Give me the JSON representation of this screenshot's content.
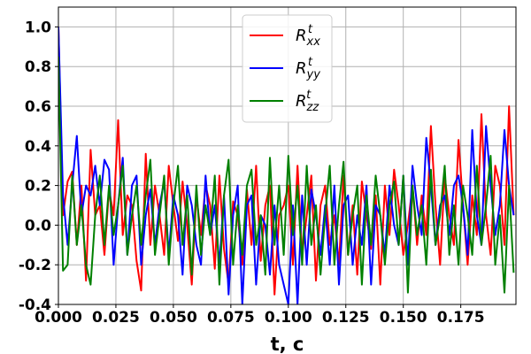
{
  "chart_data": {
    "type": "line",
    "xlabel": "t, c",
    "ylabel": "",
    "title": "",
    "xlim": [
      0,
      0.199
    ],
    "ylim": [
      -0.4,
      1.1
    ],
    "grid": true,
    "legend_position": "top-center",
    "x_ticks": [
      "0.000",
      "0.025",
      "0.050",
      "0.075",
      "0.100",
      "0.125",
      "0.150",
      "0.175"
    ],
    "y_ticks": [
      "-0.4",
      "-0.2",
      "0.0",
      "0.2",
      "0.4",
      "0.6",
      "0.8",
      "1.0"
    ],
    "x_tick_values": [
      0,
      0.025,
      0.05,
      0.075,
      0.1,
      0.125,
      0.15,
      0.175
    ],
    "y_tick_values": [
      -0.4,
      -0.2,
      0,
      0.2,
      0.4,
      0.6,
      0.8,
      1.0
    ],
    "series": [
      {
        "name": "R_xx^t",
        "color": "#ff0000",
        "x": [
          0,
          0.002,
          0.004,
          0.006,
          0.008,
          0.01,
          0.012,
          0.014,
          0.016,
          0.018,
          0.02,
          0.022,
          0.024,
          0.026,
          0.028,
          0.03,
          0.032,
          0.034,
          0.036,
          0.038,
          0.04,
          0.042,
          0.044,
          0.046,
          0.048,
          0.05,
          0.052,
          0.054,
          0.056,
          0.058,
          0.06,
          0.062,
          0.064,
          0.066,
          0.068,
          0.07,
          0.072,
          0.074,
          0.076,
          0.078,
          0.08,
          0.082,
          0.084,
          0.086,
          0.088,
          0.09,
          0.092,
          0.094,
          0.096,
          0.098,
          0.1,
          0.102,
          0.104,
          0.106,
          0.108,
          0.11,
          0.112,
          0.114,
          0.116,
          0.118,
          0.12,
          0.122,
          0.124,
          0.126,
          0.128,
          0.13,
          0.132,
          0.134,
          0.136,
          0.138,
          0.14,
          0.142,
          0.144,
          0.146,
          0.148,
          0.15,
          0.152,
          0.154,
          0.156,
          0.158,
          0.16,
          0.162,
          0.164,
          0.166,
          0.168,
          0.17,
          0.172,
          0.174,
          0.176,
          0.178,
          0.18,
          0.182,
          0.184,
          0.186,
          0.188,
          0.19,
          0.192,
          0.194,
          0.196,
          0.198
        ],
        "values": [
          1.0,
          0.05,
          0.22,
          0.27,
          -0.1,
          0.2,
          -0.28,
          0.38,
          0.05,
          0.1,
          -0.15,
          0.18,
          0.05,
          0.53,
          -0.05,
          0.15,
          0.1,
          -0.18,
          -0.33,
          0.36,
          -0.1,
          0.2,
          0.05,
          -0.15,
          0.3,
          0.1,
          -0.08,
          0.22,
          0.0,
          -0.3,
          0.15,
          -0.05,
          0.2,
          0.1,
          -0.22,
          0.25,
          -0.12,
          -0.3,
          0.12,
          0.05,
          -0.2,
          0.18,
          -0.1,
          0.3,
          -0.18,
          0.1,
          0.2,
          -0.35,
          0.05,
          0.1,
          0.2,
          -0.2,
          0.3,
          -0.15,
          0.05,
          0.25,
          -0.28,
          0.1,
          0.2,
          -0.1,
          0.05,
          -0.2,
          0.25,
          -0.15,
          0.1,
          -0.25,
          0.22,
          0.05,
          -0.12,
          0.15,
          -0.3,
          0.2,
          -0.05,
          0.28,
          0.1,
          -0.15,
          0.0,
          0.2,
          -0.1,
          0.15,
          -0.05,
          0.5,
          0.1,
          -0.2,
          0.25,
          0.05,
          -0.1,
          0.43,
          0.1,
          -0.2,
          0.15,
          -0.05,
          0.56,
          0.05,
          -0.15,
          0.3,
          0.2,
          -0.1,
          0.6,
          0.05
        ]
      },
      {
        "name": "R_yy^t",
        "color": "#0000ff",
        "x": [
          0,
          0.002,
          0.004,
          0.006,
          0.008,
          0.01,
          0.012,
          0.014,
          0.016,
          0.018,
          0.02,
          0.022,
          0.024,
          0.026,
          0.028,
          0.03,
          0.032,
          0.034,
          0.036,
          0.038,
          0.04,
          0.042,
          0.044,
          0.046,
          0.048,
          0.05,
          0.052,
          0.054,
          0.056,
          0.058,
          0.06,
          0.062,
          0.064,
          0.066,
          0.068,
          0.07,
          0.072,
          0.074,
          0.076,
          0.078,
          0.08,
          0.082,
          0.084,
          0.086,
          0.088,
          0.09,
          0.092,
          0.094,
          0.096,
          0.098,
          0.1,
          0.102,
          0.104,
          0.106,
          0.108,
          0.11,
          0.112,
          0.114,
          0.116,
          0.118,
          0.12,
          0.122,
          0.124,
          0.126,
          0.128,
          0.13,
          0.132,
          0.134,
          0.136,
          0.138,
          0.14,
          0.142,
          0.144,
          0.146,
          0.148,
          0.15,
          0.152,
          0.154,
          0.156,
          0.158,
          0.16,
          0.162,
          0.164,
          0.166,
          0.168,
          0.17,
          0.172,
          0.174,
          0.176,
          0.178,
          0.18,
          0.182,
          0.184,
          0.186,
          0.188,
          0.19,
          0.192,
          0.194,
          0.196,
          0.198
        ],
        "values": [
          1.0,
          0.15,
          -0.1,
          0.2,
          0.45,
          0.05,
          0.2,
          0.15,
          0.3,
          0.1,
          0.33,
          0.28,
          -0.2,
          0.1,
          0.34,
          -0.15,
          0.2,
          0.25,
          -0.2,
          0.05,
          0.18,
          -0.1,
          0.1,
          0.22,
          -0.15,
          0.15,
          0.05,
          -0.25,
          0.2,
          0.1,
          -0.1,
          -0.2,
          0.25,
          -0.05,
          0.1,
          -0.2,
          0.15,
          -0.35,
          0.05,
          0.2,
          -0.4,
          0.1,
          0.15,
          -0.3,
          0.05,
          0.0,
          -0.25,
          0.1,
          -0.2,
          -0.3,
          -0.4,
          0.1,
          -0.4,
          0.15,
          -0.2,
          0.18,
          0.05,
          -0.15,
          0.1,
          -0.2,
          0.2,
          -0.3,
          0.1,
          0.15,
          -0.2,
          0.05,
          -0.1,
          0.2,
          -0.3,
          0.1,
          0.05,
          -0.15,
          0.2,
          0.0,
          -0.1,
          0.25,
          -0.2,
          0.3,
          0.1,
          -0.05,
          0.44,
          0.2,
          -0.1,
          0.1,
          0.15,
          -0.05,
          0.2,
          0.25,
          0.1,
          -0.15,
          0.48,
          0.05,
          -0.1,
          0.5,
          0.2,
          -0.05,
          0.1,
          0.48,
          0.2,
          0.05
        ]
      },
      {
        "name": "R_zz^t",
        "color": "#008000",
        "x": [
          0,
          0.002,
          0.004,
          0.006,
          0.008,
          0.01,
          0.012,
          0.014,
          0.016,
          0.018,
          0.02,
          0.022,
          0.024,
          0.026,
          0.028,
          0.03,
          0.032,
          0.034,
          0.036,
          0.038,
          0.04,
          0.042,
          0.044,
          0.046,
          0.048,
          0.05,
          0.052,
          0.054,
          0.056,
          0.058,
          0.06,
          0.062,
          0.064,
          0.066,
          0.068,
          0.07,
          0.072,
          0.074,
          0.076,
          0.078,
          0.08,
          0.082,
          0.084,
          0.086,
          0.088,
          0.09,
          0.092,
          0.094,
          0.096,
          0.098,
          0.1,
          0.102,
          0.104,
          0.106,
          0.108,
          0.11,
          0.112,
          0.114,
          0.116,
          0.118,
          0.12,
          0.122,
          0.124,
          0.126,
          0.128,
          0.13,
          0.132,
          0.134,
          0.136,
          0.138,
          0.14,
          0.142,
          0.144,
          0.146,
          0.148,
          0.15,
          0.152,
          0.154,
          0.156,
          0.158,
          0.16,
          0.162,
          0.164,
          0.166,
          0.168,
          0.17,
          0.172,
          0.174,
          0.176,
          0.178,
          0.18,
          0.182,
          0.184,
          0.186,
          0.188,
          0.19,
          0.192,
          0.194,
          0.196,
          0.198
        ],
        "values": [
          0.85,
          -0.23,
          -0.2,
          0.25,
          -0.1,
          0.1,
          -0.2,
          -0.3,
          0.05,
          0.25,
          -0.1,
          0.2,
          -0.05,
          0.1,
          0.3,
          -0.15,
          0.05,
          0.2,
          -0.1,
          0.15,
          0.33,
          -0.15,
          0.05,
          0.25,
          -0.2,
          0.1,
          0.3,
          -0.1,
          0.15,
          -0.25,
          0.2,
          -0.15,
          0.1,
          -0.05,
          0.25,
          -0.3,
          0.15,
          0.33,
          -0.2,
          0.1,
          -0.15,
          0.2,
          0.28,
          -0.1,
          0.05,
          -0.25,
          0.34,
          -0.1,
          0.2,
          -0.15,
          0.35,
          -0.05,
          0.2,
          -0.2,
          0.3,
          -0.1,
          0.1,
          -0.25,
          0.05,
          0.3,
          -0.2,
          0.1,
          0.32,
          -0.15,
          0.05,
          0.2,
          -0.3,
          0.15,
          -0.1,
          0.25,
          0.05,
          -0.2,
          0.1,
          0.22,
          -0.1,
          0.25,
          -0.34,
          0.2,
          -0.05,
          0.1,
          -0.2,
          0.28,
          -0.1,
          0.05,
          0.3,
          -0.15,
          0.1,
          -0.2,
          0.2,
          0.05,
          -0.15,
          0.3,
          -0.1,
          0.1,
          0.35,
          -0.2,
          0.05,
          -0.34,
          0.2,
          -0.24
        ]
      }
    ]
  }
}
